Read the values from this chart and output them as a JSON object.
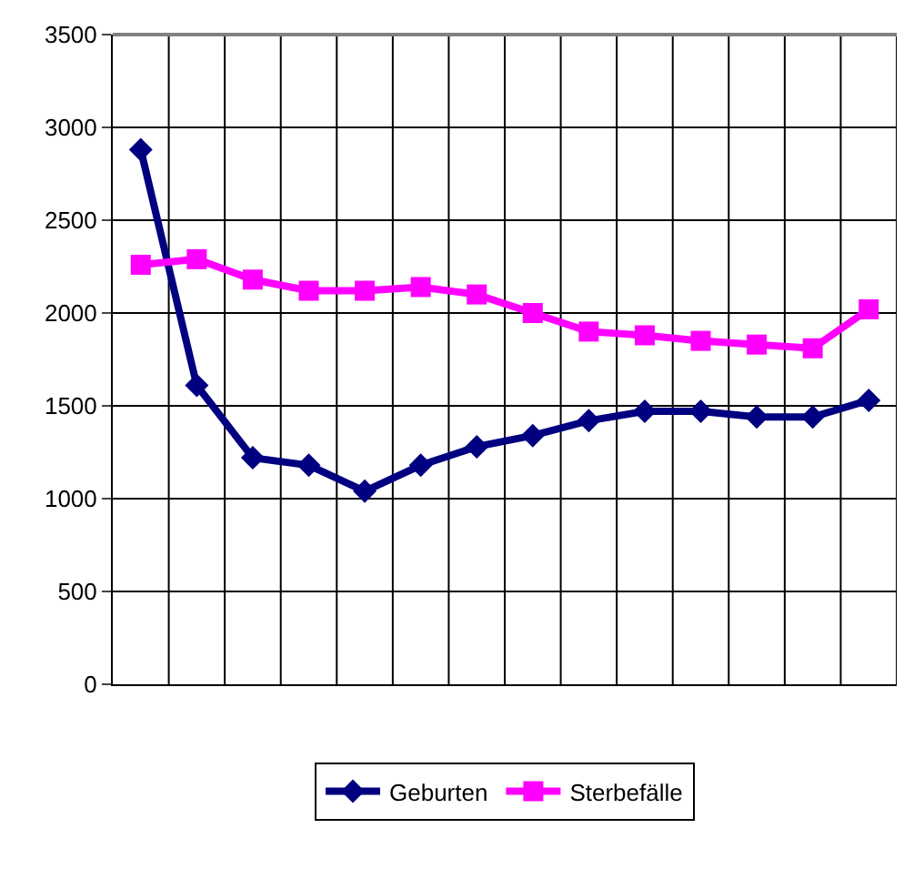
{
  "chart_data": {
    "type": "line",
    "categories": [
      null,
      null,
      null,
      null,
      null,
      null,
      null,
      null,
      null,
      null,
      null,
      null,
      null,
      null
    ],
    "series": [
      {
        "name": "Geburten",
        "color": "#000080",
        "marker": "diamond",
        "values": [
          2880,
          1610,
          1220,
          1180,
          1040,
          1180,
          1280,
          1340,
          1420,
          1470,
          1470,
          1440,
          1440,
          1530
        ]
      },
      {
        "name": "Sterbefälle",
        "color": "#ff00ff",
        "marker": "square",
        "values": [
          2260,
          2290,
          2180,
          2120,
          2120,
          2140,
          2100,
          2000,
          1900,
          1880,
          1850,
          1830,
          1810,
          2020
        ]
      }
    ],
    "ylim": [
      0,
      3500
    ],
    "yticks": [
      0,
      500,
      1000,
      1500,
      2000,
      2500,
      3000,
      3500
    ],
    "grid": true,
    "legend": "bottom",
    "line_style": "solid"
  }
}
